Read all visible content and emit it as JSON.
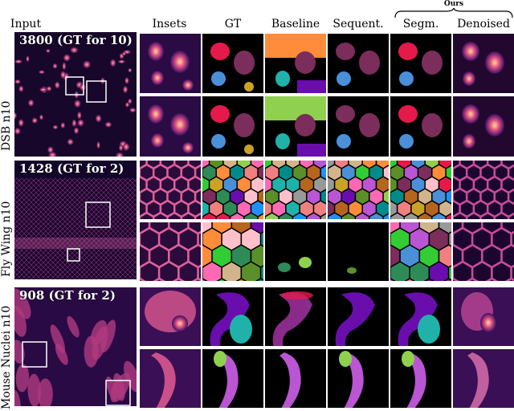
{
  "figure": {
    "column_headers": [
      "Input",
      "Insets",
      "GT",
      "Baseline",
      "Sequent.",
      "Segm.",
      "Denoised"
    ],
    "ours_label": "Ours",
    "rows": [
      {
        "label": "DSB n10",
        "count_text": "3800 (GT for 10)"
      },
      {
        "label": "Fly Wing n10",
        "count_text": "1428 (GT for 2)"
      },
      {
        "label": "Mouse Nuclei n10",
        "count_text": "908 (GT for 2)"
      }
    ]
  },
  "colors": {
    "background_dark": "#0a0410",
    "fluorescence_low": "#3a0f5c",
    "fluorescence_mid": "#b0307a",
    "fluorescence_high": "#ffd070",
    "seg_palette": [
      "#e6194b",
      "#2e8b57",
      "#4a90d9",
      "#7b2d5b",
      "#ff8c3a",
      "#6a0dad",
      "#1e90ff",
      "#8fd14f",
      "#ff69b4",
      "#20b2aa",
      "#c9a227",
      "#b5651d",
      "#ffc0cb",
      "#5a8f29",
      "#999999",
      "#d2b48c",
      "#008b8b",
      "#ba55d3",
      "#32cd32",
      "#f08080"
    ]
  }
}
